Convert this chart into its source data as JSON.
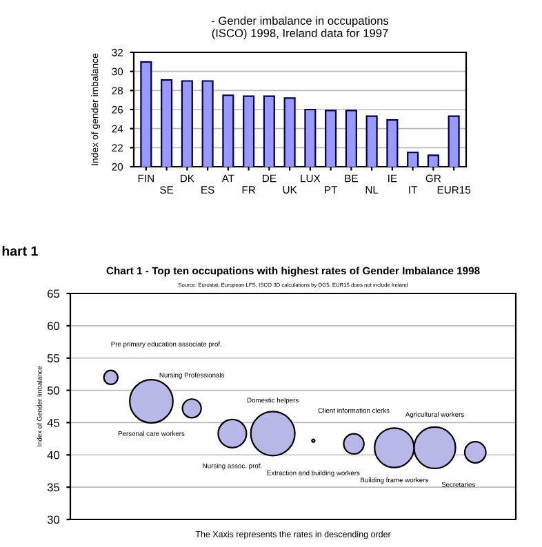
{
  "chart_data": [
    {
      "type": "bar",
      "title": "- Gender imbalance in occupations\n(ISCO) 1998, Ireland data for 1997",
      "ylabel": "Index of gender imbalance",
      "categories": [
        "FIN",
        "SE",
        "DK",
        "ES",
        "AT",
        "FR",
        "DE",
        "UK",
        "LUX",
        "PT",
        "BE",
        "NL",
        "IE",
        "IT",
        "GR",
        "EUR15"
      ],
      "values": [
        31.0,
        29.1,
        29.0,
        29.0,
        27.5,
        27.4,
        27.4,
        27.2,
        26.0,
        25.9,
        25.9,
        25.3,
        24.9,
        21.5,
        21.2,
        25.3
      ],
      "color": "#9999ff",
      "ylim": [
        20,
        32
      ],
      "yticks": [
        20,
        22,
        24,
        26,
        28,
        30,
        32
      ],
      "grid": "y",
      "annotations": [
        "hart 1"
      ]
    },
    {
      "type": "bubble",
      "title": "Chart 1 - Top ten occupations with highest rates of Gender Imbalance 1998",
      "subtitle": "Source: Eurostat, European LFS, ISCO 3D calculations by DG5. EUR15 does not include Ireland",
      "ylabel": "Index of Gender Imbalance",
      "xlabel": "The Xaxis represents the rates in descending order",
      "categories": [
        null,
        null,
        null,
        null,
        null,
        null,
        null,
        null,
        null,
        null
      ],
      "annotations": [
        "Pre primary education associate prof.",
        "Personal care workers",
        "Nursing Professionals",
        "Nursing assoc. prof.",
        "Domestic helpers",
        "Extraction and building workers",
        "Client information clerks",
        "Building frame workers",
        "Agricultural workers",
        "Secretaries"
      ],
      "values": [
        52.0,
        48.3,
        47.2,
        43.3,
        43.3,
        42.2,
        41.7,
        41.1,
        41.1,
        40.4
      ],
      "sizes": [
        0.1,
        0.96,
        0.18,
        0.41,
        1,
        0.004,
        0.21,
        0.8,
        0.88,
        0.23
      ],
      "color": "#b8b8e8",
      "ylim": [
        30,
        65
      ],
      "yticks": [
        30,
        35,
        40,
        45,
        50,
        55,
        60,
        65
      ],
      "grid": "y",
      "tick_labels": "y"
    }
  ]
}
